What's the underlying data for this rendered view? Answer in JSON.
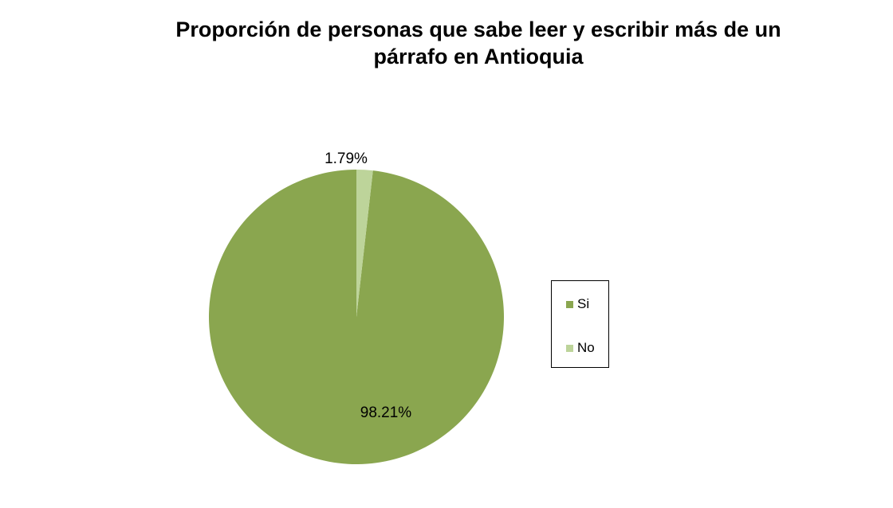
{
  "chart_data": {
    "type": "pie",
    "title": "Proporción de personas que sabe leer y escribir más de un párrafo  en Antioquia",
    "title_lines": [
      "Proporción de personas que sabe leer y escribir más de un",
      "párrafo  en Antioquia"
    ],
    "categories": [
      "Si",
      "No"
    ],
    "values": [
      98.21,
      1.79
    ],
    "data_labels": [
      "98.21%",
      "1.79%"
    ],
    "colors": [
      "#8aa64f",
      "#bdd49a"
    ],
    "legend_position": "right"
  }
}
